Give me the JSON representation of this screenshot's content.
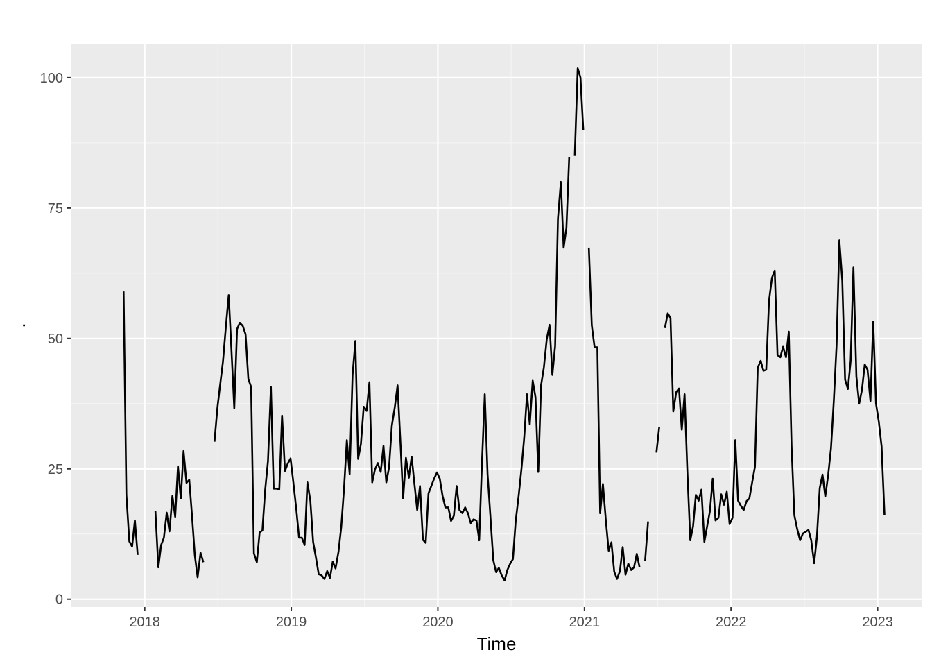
{
  "colors": {
    "panel_background": "#ebebeb",
    "grid_major": "#ffffff",
    "grid_minor": "#f5f5f5",
    "line": "#000000",
    "tick_text": "#4d4d4d",
    "tick_mark": "#333333"
  },
  "chart_data": {
    "type": "line",
    "title": "",
    "xlabel": "Time",
    "ylabel": ".",
    "x_unit": "year (decimal)",
    "xlim": [
      2017.5,
      2023.3
    ],
    "ylim": [
      -1.5,
      106.5
    ],
    "x_ticks": [
      2018,
      2019,
      2020,
      2021,
      2022,
      2023
    ],
    "x_tick_labels": [
      "2018",
      "2019",
      "2020",
      "2021",
      "2022",
      "2023"
    ],
    "y_ticks": [
      0,
      25,
      50,
      75,
      100
    ],
    "y_tick_labels": [
      "0",
      "25",
      "50",
      "75",
      "100"
    ],
    "grid": true,
    "legend": "none",
    "series": [
      {
        "segments": [
          [
            [
              2017.856,
              59.0
            ],
            [
              2017.875,
              20.0
            ],
            [
              2017.895,
              11.1
            ],
            [
              2017.914,
              10.1
            ],
            [
              2017.933,
              15.1
            ],
            [
              2017.952,
              8.5
            ]
          ],
          [
            [
              2018.073,
              16.9
            ],
            [
              2018.093,
              6.1
            ],
            [
              2018.112,
              10.4
            ],
            [
              2018.131,
              11.8
            ],
            [
              2018.15,
              16.6
            ],
            [
              2018.169,
              13.0
            ],
            [
              2018.189,
              19.8
            ],
            [
              2018.208,
              15.8
            ],
            [
              2018.227,
              25.5
            ],
            [
              2018.246,
              19.3
            ],
            [
              2018.265,
              28.4
            ],
            [
              2018.285,
              22.3
            ],
            [
              2018.304,
              22.9
            ],
            [
              2018.323,
              15.9
            ],
            [
              2018.342,
              8.4
            ],
            [
              2018.361,
              4.2
            ],
            [
              2018.381,
              8.9
            ],
            [
              2018.4,
              7.1
            ]
          ],
          [
            [
              2018.476,
              30.2
            ],
            [
              2018.496,
              36.7
            ],
            [
              2018.515,
              41.2
            ],
            [
              2018.534,
              45.6
            ],
            [
              2018.553,
              52.0
            ],
            [
              2018.573,
              58.3
            ],
            [
              2018.592,
              47.6
            ],
            [
              2018.611,
              36.6
            ],
            [
              2018.63,
              51.8
            ],
            [
              2018.649,
              53.0
            ],
            [
              2018.669,
              52.4
            ],
            [
              2018.688,
              50.8
            ],
            [
              2018.707,
              42.2
            ],
            [
              2018.726,
              40.7
            ],
            [
              2018.745,
              8.8
            ],
            [
              2018.765,
              7.1
            ],
            [
              2018.784,
              12.8
            ],
            [
              2018.803,
              13.2
            ],
            [
              2018.822,
              21.0
            ],
            [
              2018.841,
              26.5
            ],
            [
              2018.861,
              40.7
            ],
            [
              2018.88,
              21.2
            ],
            [
              2018.899,
              21.2
            ],
            [
              2018.918,
              21.0
            ],
            [
              2018.937,
              35.2
            ],
            [
              2018.957,
              24.6
            ],
            [
              2018.976,
              26.0
            ],
            [
              2018.995,
              27.0
            ],
            [
              2019.014,
              22.4
            ],
            [
              2019.034,
              17.3
            ],
            [
              2019.053,
              11.8
            ],
            [
              2019.072,
              11.8
            ],
            [
              2019.091,
              10.4
            ],
            [
              2019.11,
              22.4
            ],
            [
              2019.13,
              18.9
            ],
            [
              2019.149,
              11.0
            ],
            [
              2019.168,
              8.0
            ],
            [
              2019.187,
              4.8
            ],
            [
              2019.206,
              4.6
            ],
            [
              2019.226,
              3.9
            ],
            [
              2019.245,
              5.4
            ],
            [
              2019.264,
              4.1
            ],
            [
              2019.283,
              7.2
            ],
            [
              2019.302,
              5.9
            ],
            [
              2019.322,
              9.1
            ],
            [
              2019.341,
              13.9
            ],
            [
              2019.36,
              21.3
            ],
            [
              2019.379,
              30.5
            ],
            [
              2019.398,
              24.0
            ],
            [
              2019.418,
              43.0
            ],
            [
              2019.437,
              49.5
            ],
            [
              2019.456,
              26.9
            ],
            [
              2019.475,
              29.8
            ],
            [
              2019.494,
              36.9
            ],
            [
              2019.514,
              36.1
            ],
            [
              2019.533,
              41.6
            ],
            [
              2019.552,
              22.4
            ],
            [
              2019.571,
              24.9
            ],
            [
              2019.59,
              26.1
            ],
            [
              2019.61,
              24.4
            ],
            [
              2019.629,
              29.4
            ],
            [
              2019.648,
              22.4
            ],
            [
              2019.667,
              25.3
            ],
            [
              2019.686,
              33.3
            ],
            [
              2019.706,
              36.8
            ],
            [
              2019.725,
              41.0
            ],
            [
              2019.744,
              30.3
            ],
            [
              2019.763,
              19.3
            ],
            [
              2019.782,
              27.1
            ],
            [
              2019.802,
              23.3
            ],
            [
              2019.821,
              27.3
            ],
            [
              2019.84,
              22.1
            ],
            [
              2019.859,
              17.1
            ],
            [
              2019.878,
              21.7
            ],
            [
              2019.898,
              11.4
            ],
            [
              2019.917,
              10.8
            ],
            [
              2019.936,
              20.3
            ],
            [
              2019.955,
              21.7
            ],
            [
              2019.974,
              23.1
            ],
            [
              2019.994,
              24.3
            ],
            [
              2020.013,
              23.1
            ],
            [
              2020.032,
              19.8
            ],
            [
              2020.051,
              17.6
            ],
            [
              2020.071,
              17.6
            ],
            [
              2020.09,
              15.0
            ],
            [
              2020.109,
              16.0
            ],
            [
              2020.128,
              21.7
            ],
            [
              2020.147,
              17.1
            ],
            [
              2020.167,
              16.5
            ],
            [
              2020.186,
              17.6
            ],
            [
              2020.205,
              16.5
            ],
            [
              2020.224,
              14.6
            ],
            [
              2020.243,
              15.3
            ],
            [
              2020.263,
              15.1
            ],
            [
              2020.282,
              11.3
            ],
            [
              2020.301,
              26.2
            ],
            [
              2020.32,
              39.3
            ],
            [
              2020.339,
              24.0
            ],
            [
              2020.359,
              15.6
            ],
            [
              2020.378,
              7.5
            ],
            [
              2020.397,
              5.2
            ],
            [
              2020.416,
              6.0
            ],
            [
              2020.435,
              4.6
            ],
            [
              2020.455,
              3.6
            ],
            [
              2020.474,
              5.6
            ],
            [
              2020.493,
              6.8
            ],
            [
              2020.512,
              7.7
            ],
            [
              2020.531,
              15.0
            ],
            [
              2020.551,
              19.8
            ],
            [
              2020.57,
              24.9
            ],
            [
              2020.589,
              31.0
            ],
            [
              2020.608,
              39.3
            ],
            [
              2020.627,
              33.5
            ],
            [
              2020.647,
              41.9
            ],
            [
              2020.666,
              38.7
            ],
            [
              2020.685,
              24.4
            ],
            [
              2020.704,
              41.0
            ],
            [
              2020.723,
              44.4
            ],
            [
              2020.743,
              49.9
            ],
            [
              2020.762,
              52.6
            ],
            [
              2020.781,
              43.0
            ],
            [
              2020.8,
              48.6
            ],
            [
              2020.819,
              72.9
            ],
            [
              2020.839,
              80.0
            ],
            [
              2020.858,
              67.4
            ],
            [
              2020.877,
              71.2
            ],
            [
              2020.896,
              84.8
            ]
          ],
          [
            [
              2020.934,
              85.0
            ],
            [
              2020.954,
              101.8
            ],
            [
              2020.973,
              100.0
            ],
            [
              2020.992,
              90.0
            ]
          ],
          [
            [
              2021.03,
              67.4
            ],
            [
              2021.05,
              52.5
            ],
            [
              2021.069,
              48.3
            ],
            [
              2021.088,
              48.3
            ],
            [
              2021.107,
              16.5
            ],
            [
              2021.126,
              22.1
            ],
            [
              2021.146,
              15.1
            ],
            [
              2021.165,
              9.3
            ],
            [
              2021.184,
              10.9
            ],
            [
              2021.203,
              5.3
            ],
            [
              2021.222,
              3.9
            ],
            [
              2021.242,
              5.4
            ],
            [
              2021.261,
              10.0
            ],
            [
              2021.28,
              4.7
            ],
            [
              2021.299,
              6.8
            ],
            [
              2021.319,
              5.6
            ],
            [
              2021.338,
              6.1
            ],
            [
              2021.357,
              8.7
            ],
            [
              2021.376,
              6.1
            ]
          ],
          [
            [
              2021.414,
              7.4
            ],
            [
              2021.434,
              14.9
            ]
          ],
          [
            [
              2021.491,
              28.1
            ],
            [
              2021.51,
              33.0
            ]
          ],
          [
            [
              2021.549,
              52.0
            ],
            [
              2021.568,
              54.8
            ],
            [
              2021.587,
              53.9
            ],
            [
              2021.606,
              36.0
            ],
            [
              2021.626,
              39.7
            ],
            [
              2021.645,
              40.4
            ],
            [
              2021.664,
              32.5
            ],
            [
              2021.683,
              39.3
            ],
            [
              2021.702,
              24.5
            ],
            [
              2021.722,
              11.3
            ],
            [
              2021.741,
              14.0
            ],
            [
              2021.76,
              20.0
            ],
            [
              2021.779,
              18.9
            ],
            [
              2021.798,
              21.0
            ],
            [
              2021.818,
              11.0
            ],
            [
              2021.837,
              14.0
            ],
            [
              2021.856,
              16.9
            ],
            [
              2021.875,
              23.1
            ],
            [
              2021.894,
              15.1
            ],
            [
              2021.914,
              15.6
            ],
            [
              2021.933,
              20.1
            ],
            [
              2021.952,
              18.1
            ],
            [
              2021.971,
              20.6
            ],
            [
              2021.99,
              14.4
            ],
            [
              2022.01,
              15.6
            ],
            [
              2022.029,
              30.5
            ],
            [
              2022.048,
              18.9
            ],
            [
              2022.067,
              17.9
            ],
            [
              2022.086,
              17.1
            ],
            [
              2022.106,
              18.8
            ],
            [
              2022.125,
              19.3
            ],
            [
              2022.144,
              22.4
            ],
            [
              2022.163,
              25.4
            ],
            [
              2022.182,
              44.4
            ],
            [
              2022.202,
              45.7
            ],
            [
              2022.221,
              43.8
            ],
            [
              2022.24,
              44.0
            ],
            [
              2022.259,
              57.2
            ],
            [
              2022.279,
              61.6
            ],
            [
              2022.298,
              63.0
            ],
            [
              2022.317,
              46.8
            ],
            [
              2022.336,
              46.4
            ],
            [
              2022.355,
              48.4
            ],
            [
              2022.375,
              46.4
            ],
            [
              2022.394,
              51.3
            ],
            [
              2022.413,
              29.3
            ],
            [
              2022.432,
              16.1
            ],
            [
              2022.451,
              13.5
            ],
            [
              2022.471,
              11.3
            ],
            [
              2022.49,
              12.6
            ],
            [
              2022.509,
              12.9
            ],
            [
              2022.528,
              13.3
            ],
            [
              2022.547,
              11.3
            ],
            [
              2022.567,
              6.9
            ],
            [
              2022.586,
              12.0
            ],
            [
              2022.605,
              21.3
            ],
            [
              2022.624,
              23.9
            ],
            [
              2022.643,
              19.7
            ],
            [
              2022.663,
              23.9
            ],
            [
              2022.682,
              29.0
            ],
            [
              2022.701,
              38.0
            ],
            [
              2022.72,
              48.7
            ],
            [
              2022.739,
              68.8
            ],
            [
              2022.759,
              61.0
            ],
            [
              2022.778,
              42.1
            ],
            [
              2022.797,
              40.3
            ],
            [
              2022.816,
              45.7
            ],
            [
              2022.835,
              63.6
            ],
            [
              2022.855,
              42.7
            ],
            [
              2022.874,
              37.5
            ],
            [
              2022.893,
              40.1
            ],
            [
              2022.912,
              45.0
            ],
            [
              2022.931,
              44.0
            ],
            [
              2022.951,
              38.0
            ],
            [
              2022.97,
              53.2
            ],
            [
              2022.989,
              37.5
            ],
            [
              2023.008,
              34.0
            ],
            [
              2023.027,
              29.3
            ],
            [
              2023.047,
              16.1
            ]
          ]
        ]
      }
    ]
  }
}
